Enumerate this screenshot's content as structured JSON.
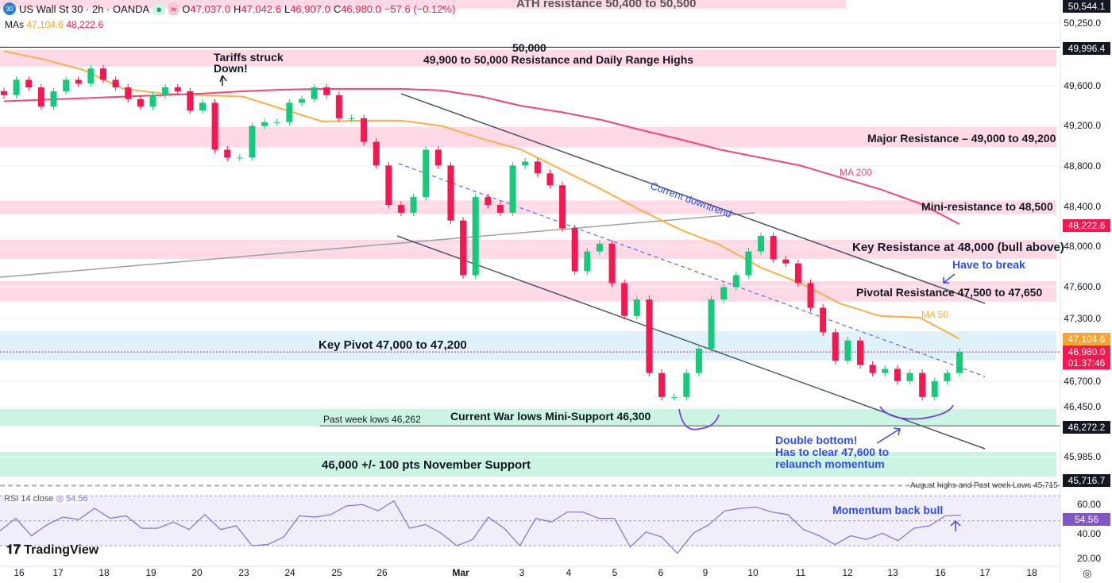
{
  "header": {
    "symbol": "US Wall St 30 · 2h · OANDA",
    "open_label": "O",
    "open": "47,037.0",
    "high_label": "H",
    "high": "47,042.6",
    "low_label": "L",
    "low": "46,907.0",
    "close_label": "C",
    "close": "46,980.0",
    "change": "−57.6 (−0.12%)",
    "mas_label": "MAs",
    "ma50_value": "47,104.6",
    "ma200_value": "48,222.6"
  },
  "colors": {
    "up": "#17c97a",
    "down": "#f5174f",
    "ma50": "#f9b046",
    "ma200": "#f0467a",
    "resistance_zone": "#ffd6e3",
    "pivot_zone": "#dcf0f8",
    "support_zone": "#c6f3e0",
    "rsi": "#8a6bd1",
    "annotation": "#2f4de8"
  },
  "price_axis": {
    "ticks": [
      50250,
      49600,
      49200,
      48800,
      48400,
      48000,
      47600,
      47300,
      46700,
      46450,
      45985
    ],
    "tick_labels": [
      "50,250.0",
      "49,600.0",
      "49,200.0",
      "48,800.0",
      "48,400.0",
      "48,000.0",
      "47,600.0",
      "47,300.0",
      "46,700.0",
      "46,450.0",
      "45,985.0"
    ],
    "tags": {
      "top": "50,544.1",
      "level_50000": "49,996.4",
      "ma200": "48,222.6",
      "ma50": "47,104.6",
      "last": "46,980.0",
      "countdown": "01:37:46",
      "war_low": "46,272.2",
      "august": "45,716.7"
    }
  },
  "time_axis": [
    "16",
    "17",
    "18",
    "19",
    "20",
    "23",
    "24",
    "25",
    "26",
    "Mar",
    "3",
    "4",
    "5",
    "6",
    "9",
    "10",
    "11",
    "12",
    "13",
    "16",
    "17",
    "18"
  ],
  "annotations": {
    "ath": "ATH resistance 50,400 to 50,500",
    "level_50000": "50,000",
    "range_highs": "49,900 to 50,000 Resistance and Daily Range Highs",
    "tariffs": "Tariffs struck Down!",
    "major": "Major Resistance – 49,000 to 49,200",
    "ma200": "MA 200",
    "mini_res": "Mini-resistance to 48,500",
    "downtrend": "Current downtrend",
    "key_res": "Key Resistance at 48,000 (bull above)",
    "have_to_break": "Have to break",
    "pivotal": "Pivotal Resistance 47,500 to 47,650",
    "ma50": "MA 50",
    "key_pivot": "Key Pivot 47,000 to 47,200",
    "past_week": "Past week lows 46,262",
    "war_lows": "Current War lows Mini-Support 46,300",
    "double_bottom": "Double bottom!",
    "clear": "Has to clear 47,600 to",
    "relaunch": "relaunch momentum",
    "november": "46,000 +/- 100 pts November Support",
    "august": "August highs and Past week Lows 45,715",
    "momentum": "Momentum back bull"
  },
  "rsi": {
    "label": "RSI 14 close",
    "value": "54.56",
    "ticks": [
      "60.00",
      "40.00",
      "20.00"
    ]
  },
  "brand": "TradingView",
  "chart_data": {
    "type": "candlestick",
    "zones": [
      {
        "from": 50400,
        "to": 50500
      },
      {
        "from": 49800,
        "to": 49975
      },
      {
        "from": 48985,
        "to": 49185
      },
      {
        "from": 48325,
        "to": 48460
      },
      {
        "from": 47875,
        "to": 48065
      },
      {
        "from": 47460,
        "to": 47655
      },
      {
        "from": 46900,
        "to": 47180,
        "kind": "pivot"
      },
      {
        "from": 46270,
        "to": 46430,
        "kind": "support"
      },
      {
        "from": 45800,
        "to": 46030,
        "kind": "support"
      }
    ],
    "levels": [
      50000,
      46272.2,
      45716.7,
      46980
    ],
    "closes": [
      49506,
      49662,
      49584,
      49390,
      49545,
      49662,
      49623,
      49779,
      49662,
      49584,
      49467,
      49390,
      49506,
      49584,
      49545,
      49351,
      49429,
      48961,
      48883,
      48883,
      49195,
      49234,
      49234,
      49429,
      49467,
      49584,
      49506,
      49273,
      49273,
      49039,
      48805,
      48415,
      48337,
      48493,
      48961,
      48805,
      48259,
      47714,
      48493,
      48415,
      48337,
      48805,
      48844,
      48727,
      48610,
      48181,
      47753,
      47948,
      48026,
      47636,
      47324,
      47480,
      46779,
      46545,
      46545,
      46779,
      47012,
      47480,
      47597,
      47714,
      47948,
      48104,
      47870,
      47831,
      47636,
      47402,
      47168,
      46896,
      47090,
      46857,
      46779,
      46818,
      46701,
      46779,
      46545,
      46701,
      46779,
      46980
    ],
    "ma50": [
      49959,
      49873,
      49764,
      49569,
      49522,
      49506,
      49491,
      49366,
      49241,
      49249,
      49249,
      49195,
      49070,
      48961,
      48766,
      48571,
      48361,
      48166,
      48010,
      47792,
      47636,
      47441,
      47324,
      47309,
      47104.6
    ],
    "ma200": [
      49444,
      49460,
      49475,
      49491,
      49506,
      49522,
      49545,
      49561,
      49569,
      49569,
      49569,
      49553,
      49491,
      49397,
      49335,
      49257,
      49156,
      49062,
      48961,
      48883,
      48805,
      48688,
      48571,
      48431,
      48222.6
    ],
    "rsi": [
      42,
      52,
      38,
      47,
      53,
      51,
      60,
      52,
      54,
      44,
      44,
      49,
      43,
      55,
      43,
      46,
      30,
      31,
      37,
      54,
      53,
      55,
      62,
      63,
      58,
      66,
      44,
      47,
      40,
      30,
      35,
      53,
      44,
      30,
      52,
      49,
      57,
      57,
      52,
      52,
      29,
      41,
      37,
      24,
      40,
      47,
      58,
      60,
      61,
      57,
      55,
      43,
      38,
      31,
      38,
      35,
      40,
      34,
      44,
      46,
      54,
      54.56
    ],
    "rsi_range": [
      20,
      70
    ]
  }
}
